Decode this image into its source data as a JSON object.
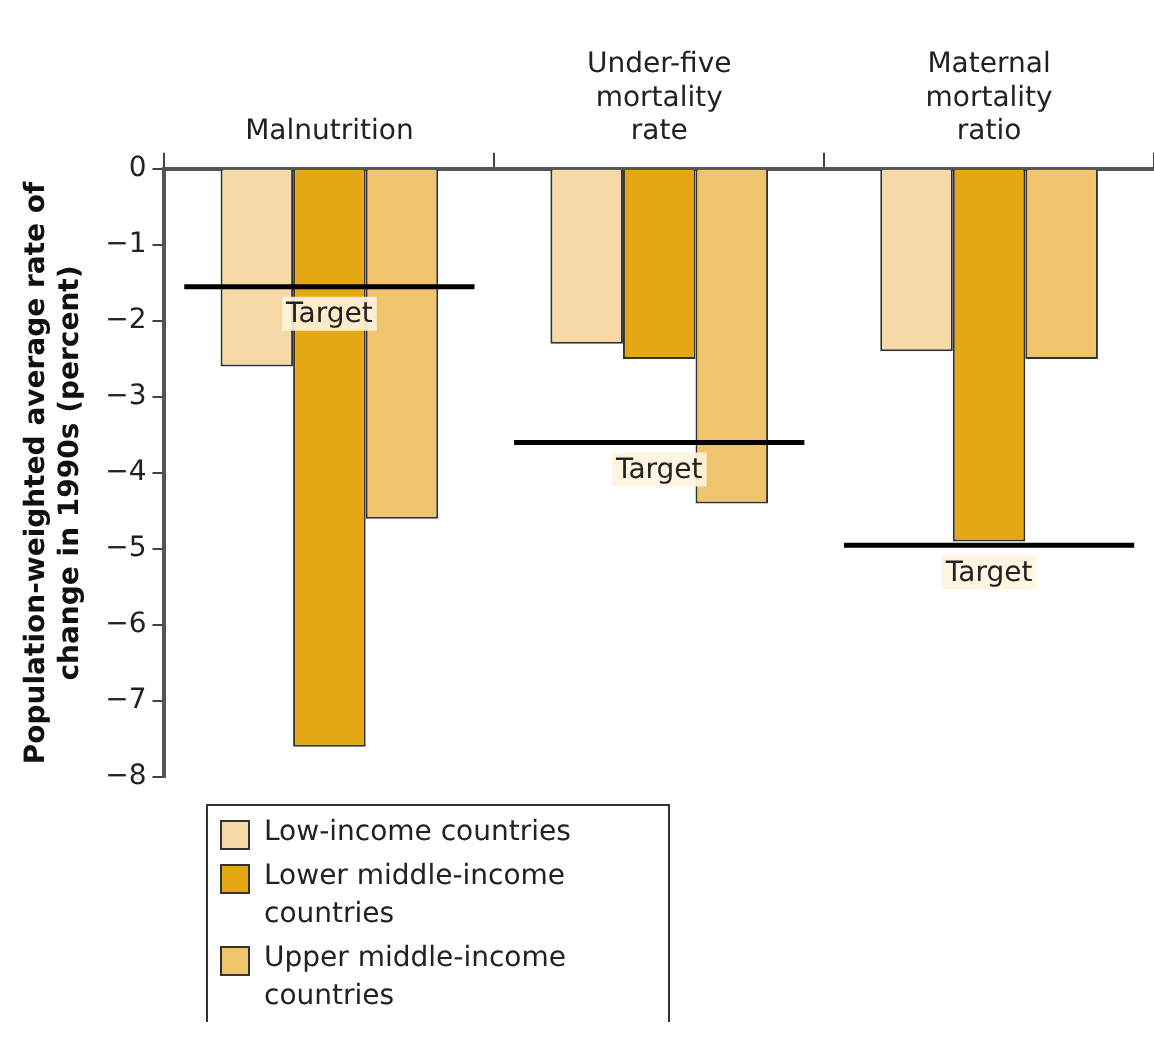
{
  "chart_data": {
    "type": "bar",
    "ylabel": "Population-weighted average rate of change in 1990s (percent)",
    "categories": [
      "Malnutrition",
      "Under-five mortality rate",
      "Maternal mortality ratio"
    ],
    "series": [
      {
        "name": "Low-income countries",
        "color": "#f6d9a6",
        "values": [
          -2.6,
          -2.3,
          -2.4
        ]
      },
      {
        "name": "Lower middle-income countries",
        "color": "#e5a713",
        "values": [
          -7.6,
          -2.5,
          -4.9
        ]
      },
      {
        "name": "Upper middle-income countries",
        "color": "#f0c46d",
        "values": [
          -4.6,
          -4.4,
          -2.5
        ]
      }
    ],
    "ylim": [
      -8,
      0
    ],
    "yticks": [
      0,
      {
        "value": -1,
        "label": "−1"
      },
      {
        "value": -2,
        "label": "−2"
      },
      {
        "value": -3,
        "label": "−3"
      },
      {
        "value": -4,
        "label": "−4"
      },
      {
        "value": -5,
        "label": "−5"
      },
      {
        "value": -6,
        "label": "−6"
      },
      {
        "value": -7,
        "label": "−7"
      },
      {
        "value": -8,
        "label": "−8"
      }
    ],
    "ref_lines": [
      {
        "axis": "y",
        "value": -1.55,
        "label": "Target",
        "color": "#000000"
      },
      {
        "axis": "y",
        "value": -3.6,
        "label": "Target",
        "color": "#000000"
      },
      {
        "axis": "y",
        "value": -4.95,
        "label": "Target",
        "color": "#000000"
      }
    ],
    "grid": false,
    "legend": "bottom left"
  }
}
